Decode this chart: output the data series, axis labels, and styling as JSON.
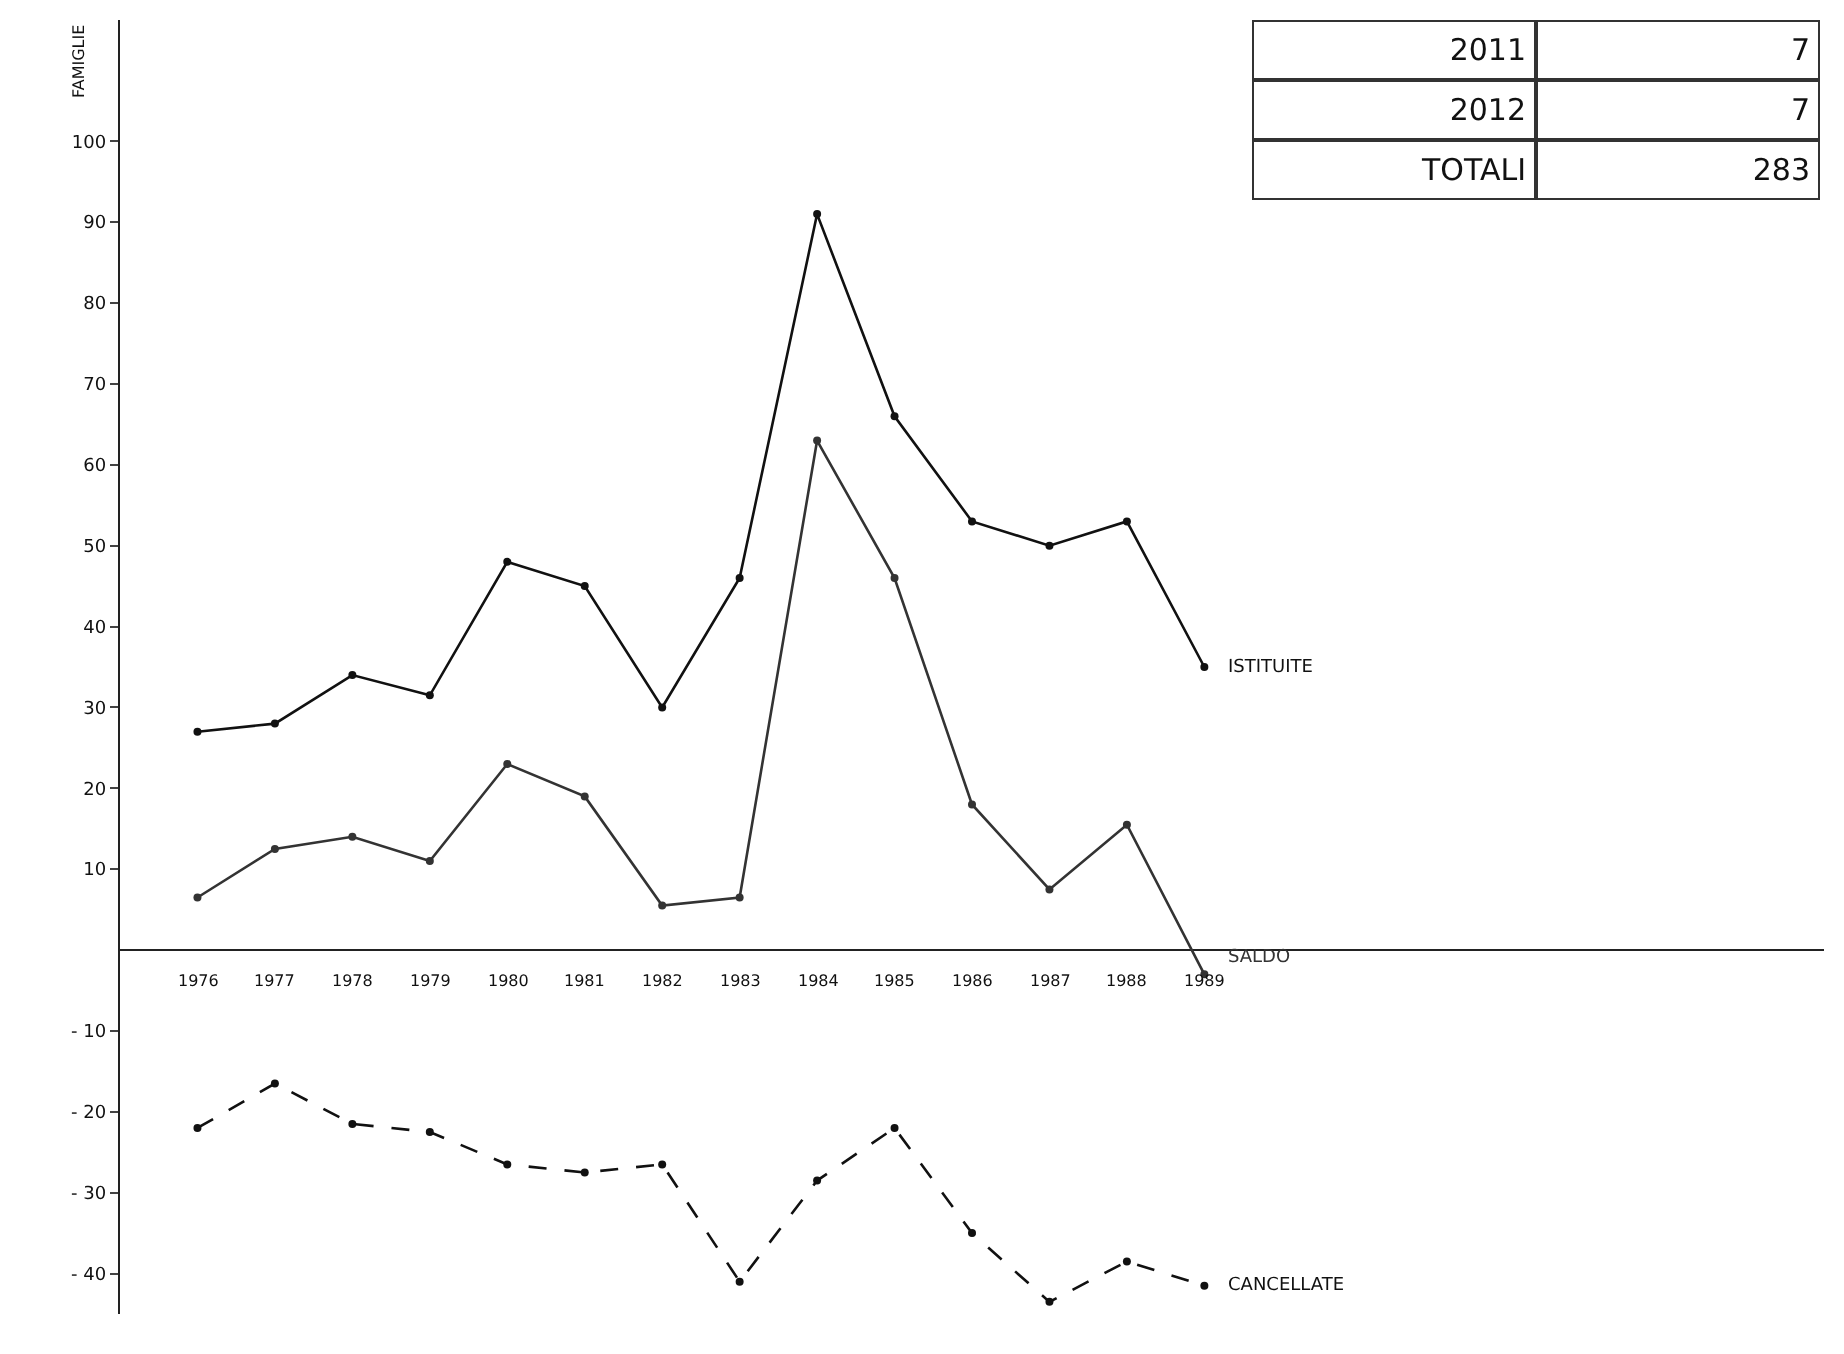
{
  "chart_data": {
    "type": "line",
    "ylabel": "FAMIGLIE",
    "x": [
      1976,
      1977,
      1978,
      1979,
      1980,
      1981,
      1982,
      1983,
      1984,
      1985,
      1986,
      1987,
      1988,
      1989
    ],
    "series": [
      {
        "name": "ISTITUITE",
        "color": "#111111",
        "line_style": "solid",
        "values": [
          27,
          28,
          34,
          31.5,
          48,
          45,
          30,
          46,
          91,
          66,
          53,
          50,
          53,
          35
        ]
      },
      {
        "name": "SALDO",
        "color": "#333333",
        "line_style": "solid",
        "values": [
          6.5,
          12.5,
          14,
          11,
          23,
          19,
          5.5,
          6.5,
          63,
          46,
          18,
          7.5,
          15.5,
          -3
        ]
      },
      {
        "name": "CANCELLATE",
        "color": "#111111",
        "line_style": "dashed",
        "values": [
          -22,
          -16.5,
          -21.5,
          -22.5,
          -26.5,
          -27.5,
          -26.5,
          -41,
          -28.5,
          -22,
          -35,
          -43.5,
          -38.5,
          -41.5
        ]
      }
    ],
    "marker": "circle",
    "xlim": [
      1975,
      1997
    ],
    "ylim": [
      -45,
      115
    ],
    "xticks": [
      1976,
      1977,
      1978,
      1979,
      1980,
      1981,
      1982,
      1983,
      1984,
      1985,
      1986,
      1987,
      1988,
      1989
    ],
    "yticks": [
      {
        "value": -40,
        "label": "- 40"
      },
      {
        "value": -30,
        "label": "- 30"
      },
      {
        "value": -20,
        "label": "- 20"
      },
      {
        "value": -10,
        "label": "- 10"
      },
      10,
      20,
      30,
      40,
      50,
      60,
      70,
      80,
      90,
      100
    ],
    "legend": false,
    "annotations": [
      "2011",
      "7",
      "2012",
      "7",
      "TOTALI",
      "283"
    ]
  }
}
